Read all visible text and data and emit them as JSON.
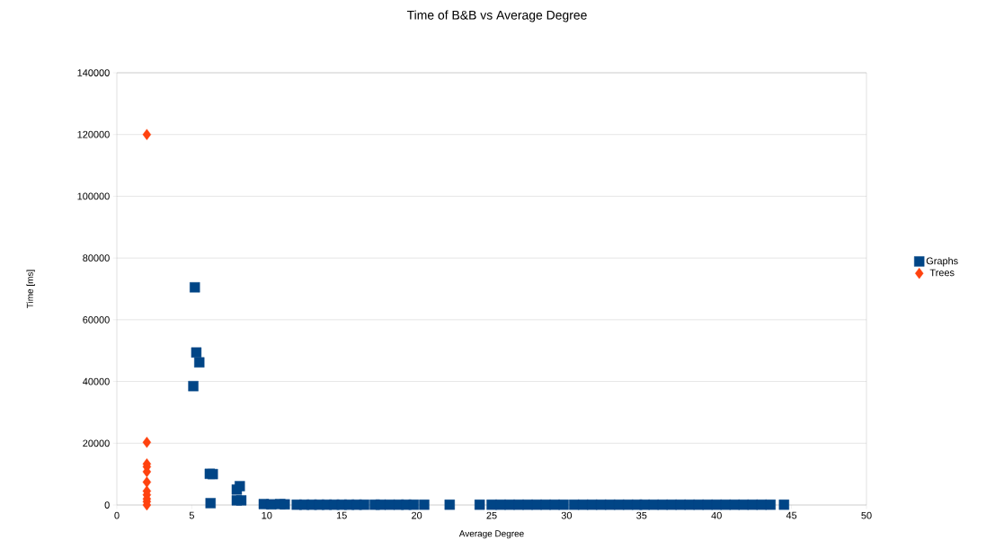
{
  "chart_data": {
    "type": "scatter",
    "title": "Time of B&B vs Average Degree",
    "xlabel": "Average Degree",
    "ylabel": "Time [ms]",
    "xlim": [
      0,
      50
    ],
    "xticks": [
      0,
      5,
      10,
      15,
      20,
      25,
      30,
      35,
      40,
      45,
      50
    ],
    "ylim": [
      0,
      140000
    ],
    "yticks": [
      0,
      20000,
      40000,
      60000,
      80000,
      100000,
      120000,
      140000
    ],
    "grid": "y",
    "legend": "right",
    "series": [
      {
        "name": "Graphs",
        "color": "#004586",
        "marker": "square",
        "x": [
          5.2,
          5.3,
          5.5,
          5.1,
          6.2,
          6.4,
          6.25,
          8.2,
          8.0,
          8.3,
          8.0,
          9.8,
          10.3,
          10.9,
          11.2,
          12.0,
          12.5,
          13.0,
          13.5,
          14.0,
          14.5,
          15.0,
          15.5,
          16.0,
          16.5,
          17.2,
          17.6,
          18.2,
          18.8,
          19.3,
          19.8,
          20.5,
          22.2,
          24.2,
          25.0,
          25.6,
          26.2,
          26.8,
          27.4,
          28.0,
          28.6,
          29.2,
          29.8,
          30.5,
          31.1,
          31.7,
          32.3,
          32.9,
          33.5,
          34.1,
          34.7,
          35.2,
          35.8,
          36.4,
          37.0,
          37.6,
          38.2,
          38.8,
          39.4,
          40.0,
          40.6,
          41.2,
          41.8,
          42.4,
          43.0,
          43.6,
          44.5
        ],
        "values": [
          70500,
          49400,
          46200,
          38500,
          10100,
          10000,
          600,
          6100,
          5000,
          1500,
          1500,
          300,
          200,
          300,
          200,
          100,
          100,
          100,
          100,
          100,
          100,
          100,
          100,
          100,
          100,
          100,
          100,
          100,
          100,
          100,
          100,
          100,
          100,
          100,
          100,
          100,
          100,
          100,
          100,
          100,
          100,
          100,
          100,
          100,
          100,
          100,
          100,
          100,
          100,
          100,
          100,
          100,
          100,
          100,
          100,
          100,
          100,
          100,
          100,
          100,
          100,
          100,
          100,
          100,
          100,
          100,
          100
        ]
      },
      {
        "name": "Trees",
        "color": "#ff420e",
        "marker": "diamond",
        "x": [
          2,
          2,
          2,
          2,
          2,
          2,
          2,
          2,
          2,
          2,
          2
        ],
        "values": [
          120000,
          20300,
          13300,
          12400,
          10800,
          7400,
          4500,
          3300,
          2000,
          1100,
          0
        ]
      }
    ]
  }
}
